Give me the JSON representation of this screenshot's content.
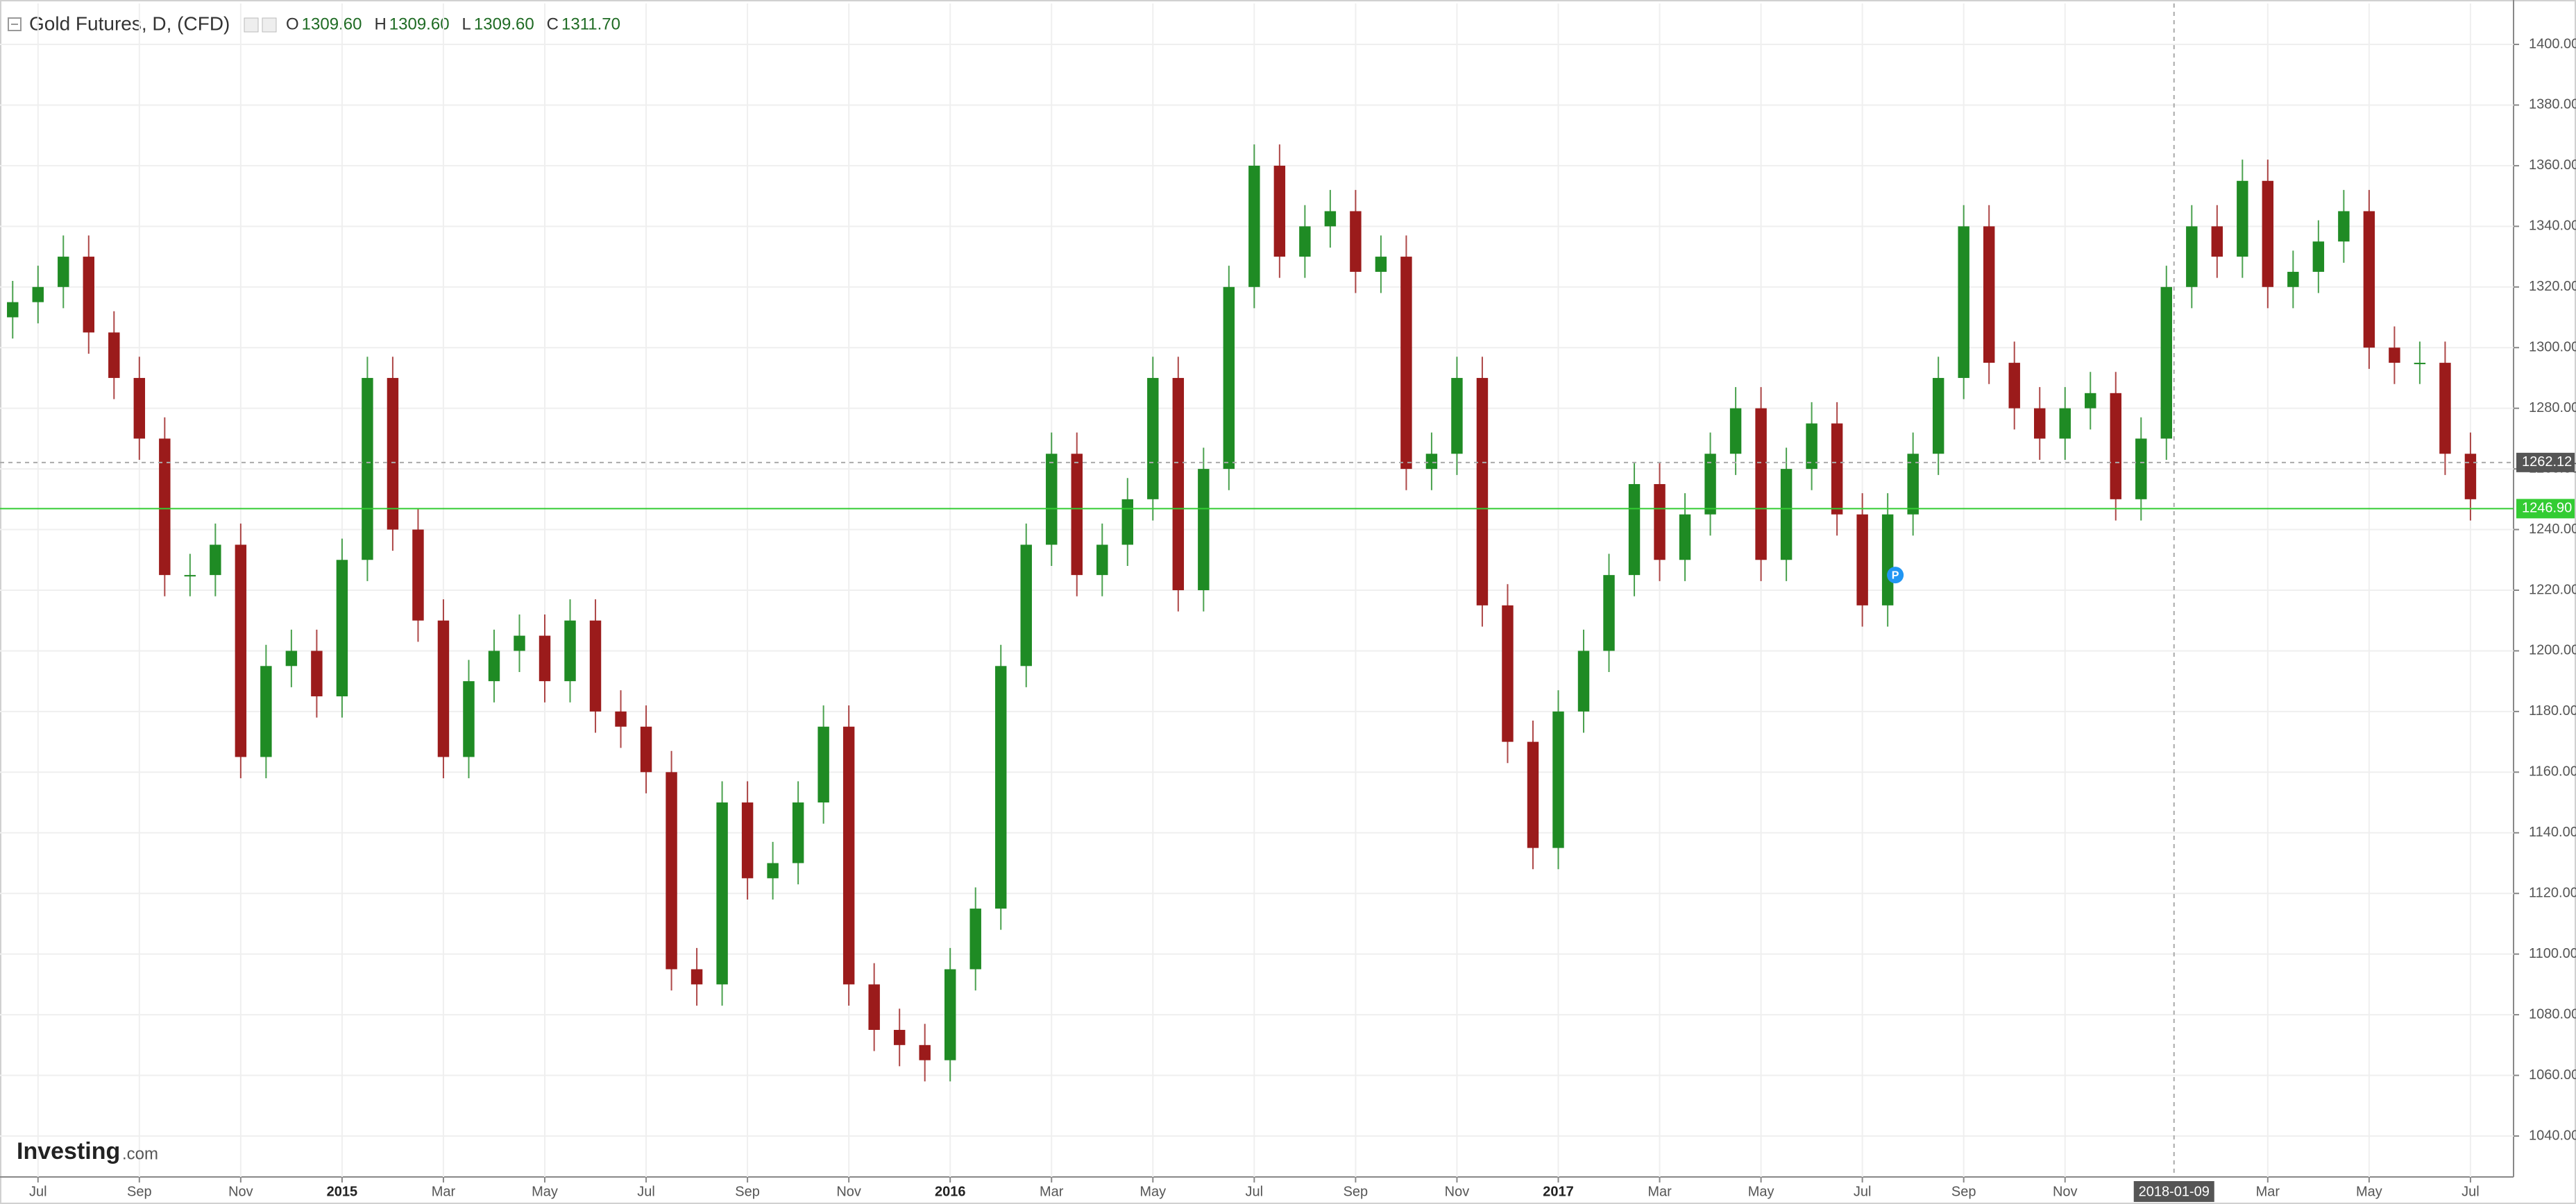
{
  "chart_data": {
    "type": "candlestick",
    "title": "Gold Futures, D, (CFD)",
    "ohlc_legend": [
      {
        "key": "O",
        "value": "1309.60"
      },
      {
        "key": "H",
        "value": "1309.60"
      },
      {
        "key": "L",
        "value": "1309.60"
      },
      {
        "key": "C",
        "value": "1311.70"
      }
    ],
    "logo": {
      "brand": "Investing",
      "suffix": ".com"
    },
    "up_color": "#1f8b24",
    "down_color": "#9b1b1b",
    "open": [
      1310,
      1315,
      1320,
      1330,
      1305,
      1290,
      1270,
      1225,
      1225,
      1235,
      1165,
      1195,
      1200,
      1185,
      1230,
      1290,
      1240,
      1210,
      1165,
      1190,
      1200,
      1205,
      1190,
      1210,
      1180,
      1175,
      1160,
      1095,
      1090,
      1150,
      1125,
      1130,
      1150,
      1175,
      1090,
      1075,
      1070,
      1065,
      1095,
      1115,
      1195,
      1235,
      1265,
      1225,
      1235,
      1250,
      1290,
      1220,
      1260,
      1320,
      1360,
      1330,
      1340,
      1345,
      1325,
      1330,
      1260,
      1265,
      1290,
      1215,
      1170,
      1135,
      1180,
      1200,
      1225,
      1255,
      1230,
      1245,
      1265,
      1280,
      1230,
      1260,
      1275,
      1245,
      1215,
      1245,
      1265,
      1290,
      1340,
      1295,
      1280,
      1270,
      1280,
      1285,
      1250,
      1270,
      1320,
      1340,
      1330,
      1355,
      1320,
      1325,
      1335,
      1345,
      1300,
      1295,
      1295,
      1265
    ],
    "high": [
      1322,
      1327,
      1337,
      1337,
      1312,
      1297,
      1277,
      1232,
      1242,
      1242,
      1202,
      1207,
      1207,
      1237,
      1297,
      1297,
      1247,
      1217,
      1197,
      1207,
      1212,
      1212,
      1217,
      1217,
      1187,
      1182,
      1167,
      1102,
      1157,
      1157,
      1137,
      1157,
      1182,
      1182,
      1097,
      1082,
      1077,
      1102,
      1122,
      1202,
      1242,
      1272,
      1272,
      1242,
      1257,
      1297,
      1297,
      1267,
      1327,
      1367,
      1367,
      1347,
      1352,
      1352,
      1337,
      1337,
      1272,
      1297,
      1297,
      1222,
      1177,
      1187,
      1207,
      1232,
      1262,
      1262,
      1252,
      1272,
      1287,
      1287,
      1267,
      1282,
      1282,
      1252,
      1252,
      1272,
      1297,
      1347,
      1347,
      1302,
      1287,
      1287,
      1292,
      1292,
      1277,
      1327,
      1347,
      1347,
      1362,
      1362,
      1332,
      1342,
      1352,
      1352,
      1307,
      1302,
      1302,
      1272
    ],
    "low": [
      1303,
      1308,
      1313,
      1298,
      1283,
      1263,
      1218,
      1218,
      1218,
      1158,
      1158,
      1188,
      1178,
      1178,
      1223,
      1233,
      1203,
      1158,
      1158,
      1183,
      1193,
      1183,
      1183,
      1173,
      1168,
      1153,
      1088,
      1083,
      1083,
      1118,
      1118,
      1123,
      1143,
      1083,
      1068,
      1063,
      1058,
      1058,
      1088,
      1108,
      1188,
      1228,
      1218,
      1218,
      1228,
      1243,
      1213,
      1213,
      1253,
      1313,
      1323,
      1323,
      1333,
      1318,
      1318,
      1253,
      1253,
      1258,
      1208,
      1163,
      1128,
      1128,
      1173,
      1193,
      1218,
      1223,
      1223,
      1238,
      1258,
      1223,
      1223,
      1253,
      1238,
      1208,
      1208,
      1238,
      1258,
      1283,
      1288,
      1273,
      1263,
      1263,
      1273,
      1243,
      1243,
      1263,
      1313,
      1323,
      1323,
      1313,
      1313,
      1318,
      1328,
      1293,
      1288,
      1288,
      1258,
      1243
    ],
    "close": [
      1315,
      1320,
      1330,
      1305,
      1290,
      1270,
      1225,
      1225,
      1235,
      1165,
      1195,
      1200,
      1185,
      1230,
      1290,
      1240,
      1210,
      1165,
      1190,
      1200,
      1205,
      1190,
      1210,
      1180,
      1175,
      1160,
      1095,
      1090,
      1150,
      1125,
      1130,
      1150,
      1175,
      1090,
      1075,
      1070,
      1065,
      1095,
      1115,
      1195,
      1235,
      1265,
      1225,
      1235,
      1250,
      1290,
      1220,
      1260,
      1320,
      1360,
      1330,
      1340,
      1345,
      1325,
      1330,
      1260,
      1265,
      1290,
      1215,
      1170,
      1135,
      1180,
      1200,
      1225,
      1255,
      1230,
      1245,
      1265,
      1280,
      1230,
      1260,
      1275,
      1245,
      1215,
      1245,
      1265,
      1290,
      1340,
      1295,
      1280,
      1270,
      1280,
      1285,
      1250,
      1270,
      1320,
      1340,
      1330,
      1355,
      1320,
      1325,
      1335,
      1345,
      1300,
      1295,
      1295,
      1265,
      1250
    ],
    "xlim": [
      -0.5,
      98.7
    ],
    "xticks": [
      {
        "value": 1,
        "label": "Jul"
      },
      {
        "value": 5,
        "label": "Sep"
      },
      {
        "value": 9,
        "label": "Nov"
      },
      {
        "value": 13,
        "label": "2015"
      },
      {
        "value": 17,
        "label": "Mar"
      },
      {
        "value": 21,
        "label": "May"
      },
      {
        "value": 25,
        "label": "Jul"
      },
      {
        "value": 29,
        "label": "Sep"
      },
      {
        "value": 33,
        "label": "Nov"
      },
      {
        "value": 37,
        "label": "2016"
      },
      {
        "value": 41,
        "label": "Mar"
      },
      {
        "value": 45,
        "label": "May"
      },
      {
        "value": 49,
        "label": "Jul"
      },
      {
        "value": 53,
        "label": "Sep"
      },
      {
        "value": 57,
        "label": "Nov"
      },
      {
        "value": 61,
        "label": "2017"
      },
      {
        "value": 65,
        "label": "Mar"
      },
      {
        "value": 69,
        "label": "May"
      },
      {
        "value": 73,
        "label": "Jul"
      },
      {
        "value": 77,
        "label": "Sep"
      },
      {
        "value": 81,
        "label": "Nov"
      },
      {
        "value": 89,
        "label": "Mar"
      },
      {
        "value": 93,
        "label": "May"
      },
      {
        "value": 97,
        "label": "Jul"
      }
    ],
    "ylim": [
      1026.5,
      1413.5
    ],
    "yticks": [
      {
        "value": 1040,
        "label": "1040.00"
      },
      {
        "value": 1060,
        "label": "1060.00"
      },
      {
        "value": 1080,
        "label": "1080.00"
      },
      {
        "value": 1100,
        "label": "1100.00"
      },
      {
        "value": 1120,
        "label": "1120.00"
      },
      {
        "value": 1140,
        "label": "1140.00"
      },
      {
        "value": 1160,
        "label": "1160.00"
      },
      {
        "value": 1180,
        "label": "1180.00"
      },
      {
        "value": 1200,
        "label": "1200.00"
      },
      {
        "value": 1220,
        "label": "1220.00"
      },
      {
        "value": 1240,
        "label": "1240.00"
      },
      {
        "value": 1260,
        "label": "1260.00"
      },
      {
        "value": 1280,
        "label": "1280.00"
      },
      {
        "value": 1300,
        "label": "1300.00"
      },
      {
        "value": 1320,
        "label": "1320.00"
      },
      {
        "value": 1340,
        "label": "1340.00"
      },
      {
        "value": 1360,
        "label": "1360.00"
      },
      {
        "value": 1380,
        "label": "1380.00"
      },
      {
        "value": 1400,
        "label": "1400.00"
      }
    ],
    "grid": true,
    "crosshair": {
      "x": {
        "value": 85.3,
        "label": "2018-01-09"
      },
      "y": 1262.12
    },
    "last_price": {
      "value": 1246.9,
      "label": "1246.90",
      "color": "#33cc33"
    },
    "annotation": {
      "x": 74.3,
      "y": 1225,
      "label": "P"
    }
  }
}
